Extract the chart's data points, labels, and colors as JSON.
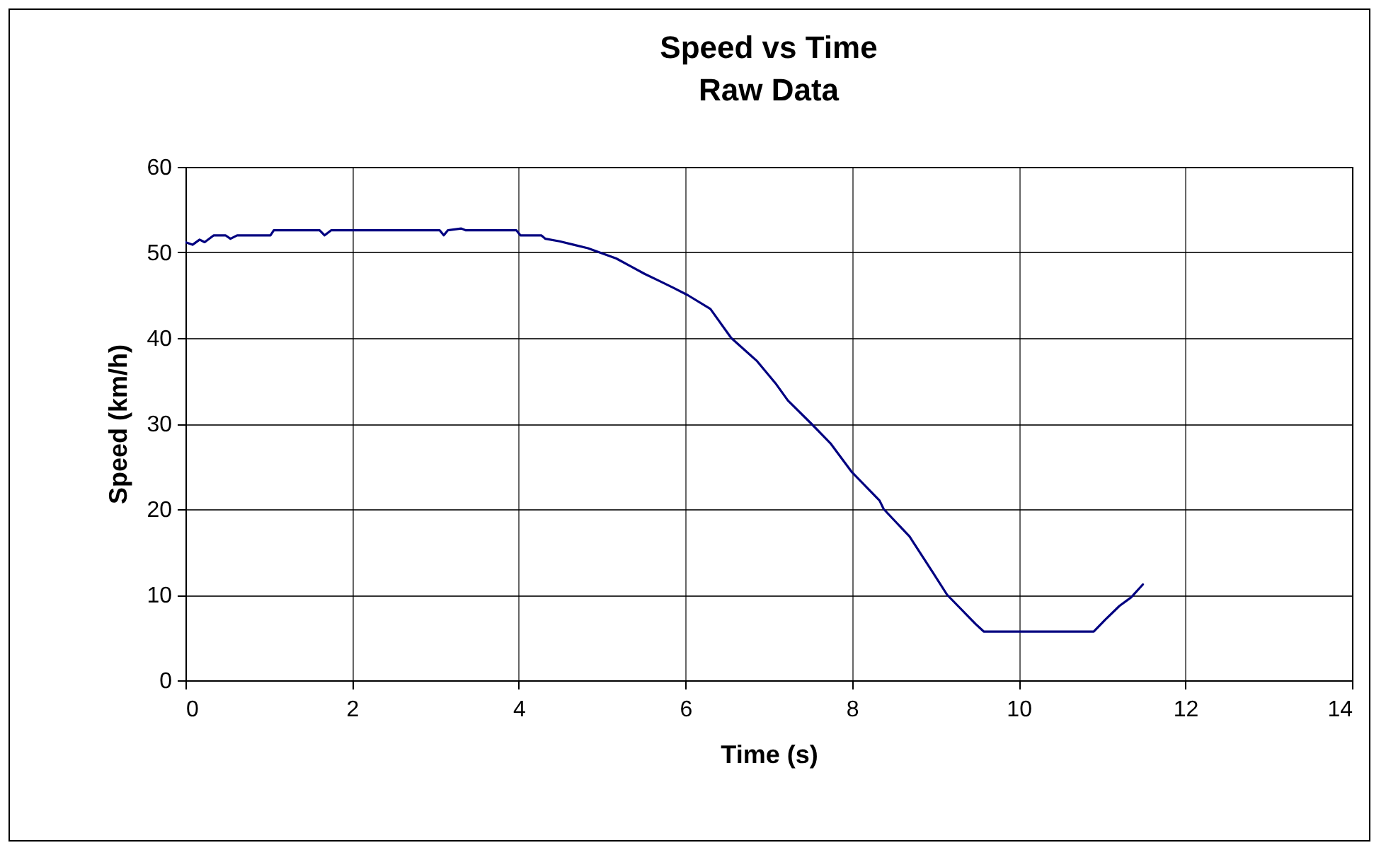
{
  "chart_data": {
    "type": "line",
    "title": "Speed vs Time",
    "subtitle": "Raw Data",
    "xlabel": "Time (s)",
    "ylabel": "Speed (km/h)",
    "x": [
      0,
      0.085,
      0.17,
      0.23,
      0.34,
      0.48,
      0.54,
      0.62,
      1.02,
      1.06,
      1.61,
      1.67,
      1.75,
      3.05,
      3.1,
      3.15,
      3.31,
      3.36,
      3.97,
      4.02,
      4.27,
      4.32,
      4.49,
      4.66,
      4.83,
      5.0,
      5.17,
      5.34,
      5.51,
      5.68,
      5.85,
      6.03,
      6.3,
      6.55,
      6.86,
      7.09,
      7.23,
      7.51,
      7.74,
      8.0,
      8.33,
      8.38,
      8.69,
      8.97,
      9.14,
      9.48,
      9.58,
      10.9,
      11.04,
      11.21,
      11.35,
      11.49
    ],
    "series": [
      {
        "color": "#000080",
        "values": [
          51.2,
          50.9,
          51.5,
          51.2,
          52.0,
          52.0,
          51.6,
          52.0,
          52.0,
          52.6,
          52.6,
          52.0,
          52.6,
          52.6,
          52.0,
          52.6,
          52.8,
          52.6,
          52.6,
          52.0,
          52.0,
          51.6,
          51.3,
          50.9,
          50.5,
          49.9,
          49.3,
          48.4,
          47.5,
          46.7,
          45.9,
          45.0,
          43.4,
          40.0,
          37.3,
          34.6,
          32.7,
          30.0,
          27.7,
          24.3,
          21.0,
          20.0,
          16.8,
          12.6,
          10.0,
          6.6,
          5.7,
          5.7,
          7.1,
          8.7,
          9.7,
          11.2
        ]
      }
    ],
    "xlim": [
      0,
      14
    ],
    "xticks": [
      0,
      2,
      4,
      6,
      8,
      10,
      12,
      14
    ],
    "ylim": [
      0,
      60
    ],
    "yticks": [
      0,
      10,
      20,
      30,
      40,
      50,
      60
    ],
    "grid": true,
    "marker": "none",
    "line_style": "solid"
  }
}
